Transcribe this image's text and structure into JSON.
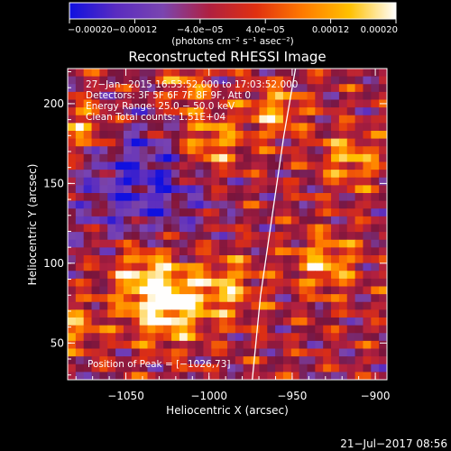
{
  "chart_data": {
    "type": "heatmap",
    "title": "Reconstructed RHESSI Image",
    "xlabel": "Heliocentric X (arcsec)",
    "ylabel": "Heliocentric Y (arcsec)",
    "xlim": [
      -1085,
      -893
    ],
    "ylim": [
      27,
      222
    ],
    "x_ticks": [
      -1050,
      -1000,
      -950,
      -900
    ],
    "x_tick_labels": [
      "−1050",
      "−1000",
      "−950",
      "−900"
    ],
    "y_ticks": [
      50,
      100,
      150,
      200
    ],
    "y_tick_labels": [
      "50",
      "100",
      "150",
      "200"
    ],
    "colorbar": {
      "range": [
        -0.0002,
        0.0002
      ],
      "tick_values": [
        -0.0002,
        -0.00012,
        -4e-05,
        4e-05,
        0.00012,
        0.0002
      ],
      "tick_labels": [
        "−0.00020",
        "−0.00012",
        "−4.0e−05",
        "4.0e−05",
        "0.00012",
        "0.00020"
      ],
      "unit_label": "(photons cm⁻² s⁻¹ asec⁻²)",
      "colormap_stops": [
        "#1010e0",
        "#5a2cc0",
        "#7a45b0",
        "#b02040",
        "#e03010",
        "#ff7a00",
        "#ffc000",
        "#ffffff"
      ]
    },
    "annotations": [
      "27−Jan−2015 16:53:52.000 to 17:03:52.000",
      "Detectors: 3F 5F 6F 7F 8F 9F, Att 0",
      "Energy Range: 25.0 − 50.0 keV",
      "Clean  Total counts: 1.51E+04"
    ],
    "peak_label": "Position of Peak = [−1026,73]",
    "peak": [
      -1026,
      73
    ],
    "limb_curve": {
      "x": [
        -974,
        -969,
        -962,
        -955,
        -948
      ],
      "y": [
        27,
        80,
        130,
        180,
        222
      ]
    },
    "grid": false,
    "timestamp": "21−Jul−2017 08:56"
  }
}
